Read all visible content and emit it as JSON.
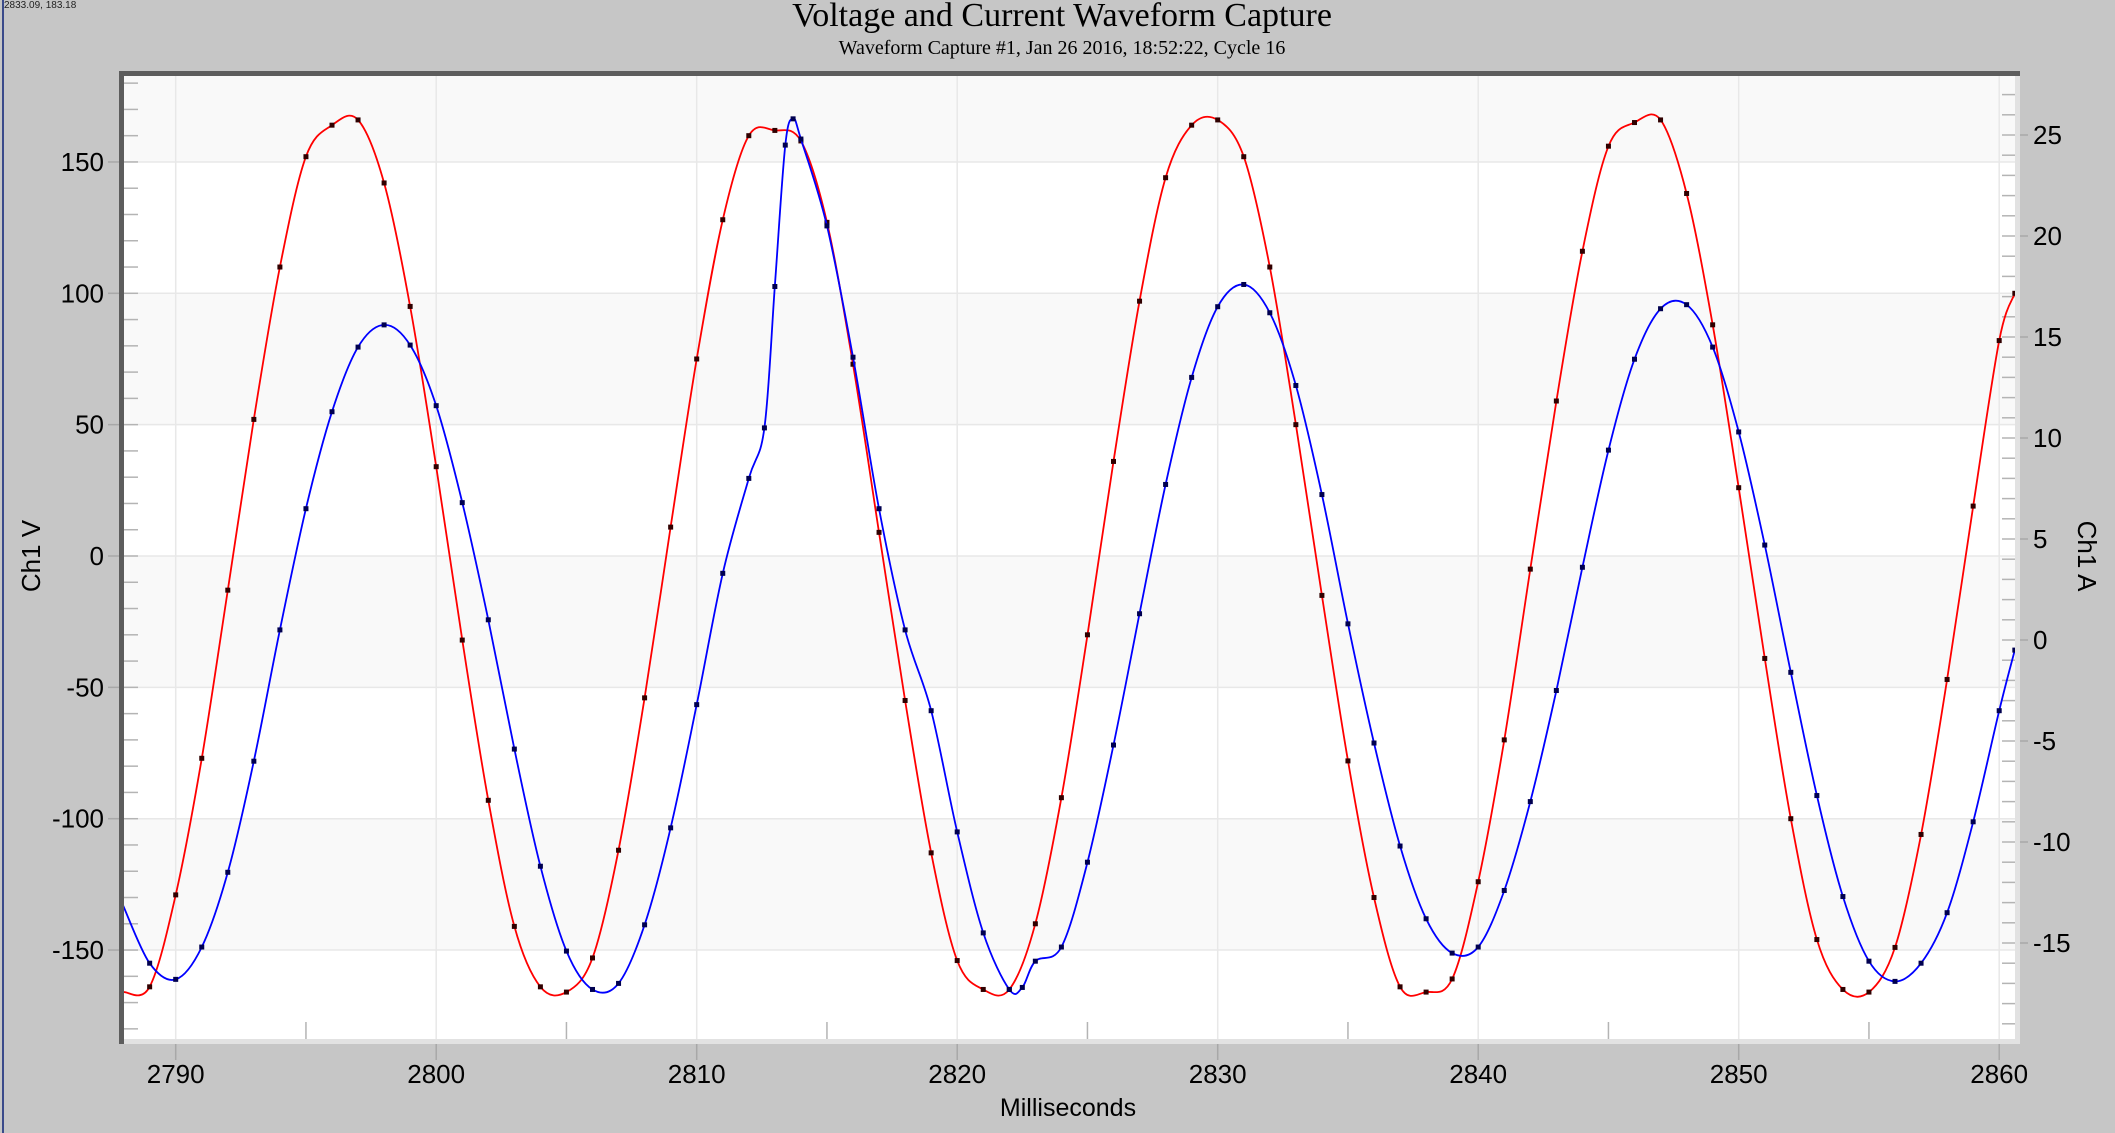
{
  "cursor_readout": "2833.09, 183.18",
  "chart_data": {
    "type": "line",
    "title": "Voltage and Current Waveform Capture",
    "subtitle": "Waveform Capture #1, Jan 26 2016, 18:52:22,  Cycle 16",
    "xlabel": "Milliseconds",
    "ylabel": "Ch1 V",
    "y2label": "Ch1 A",
    "xlim": [
      2787.9,
      2860.6
    ],
    "ylim": [
      -183.9,
      183.5
    ],
    "y2lim": [
      -19.7,
      28.0
    ],
    "x_ticks": [
      "2790",
      "2800",
      "2810",
      "2820",
      "2830",
      "2840",
      "2850",
      "2860"
    ],
    "y_ticks": [
      "150",
      "100",
      "50",
      "0",
      "-50",
      "-100",
      "-150"
    ],
    "y2_ticks": [
      "25",
      "20",
      "15",
      "10",
      "5",
      "0",
      "-5",
      "-10",
      "-15"
    ],
    "grid": true,
    "colors": {
      "voltage": "#ff0000",
      "current": "#0000ff",
      "background": "#c6c6c6",
      "band": "#f9f9f9"
    },
    "series": [
      {
        "axis": "left",
        "color": "#ff0000",
        "x": [
          2787.9,
          2788,
          2789,
          2790,
          2791,
          2792,
          2793,
          2794,
          2795,
          2796,
          2797,
          2798,
          2799,
          2800,
          2801,
          2802,
          2803,
          2804,
          2805,
          2806,
          2807,
          2808,
          2809,
          2810,
          2811,
          2812,
          2813,
          2814,
          2815,
          2816,
          2817,
          2818,
          2819,
          2820,
          2821,
          2822,
          2823,
          2824,
          2825,
          2826,
          2827,
          2828,
          2829,
          2830,
          2831,
          2832,
          2833,
          2834,
          2835,
          2836,
          2837,
          2838,
          2839,
          2840,
          2841,
          2842,
          2843,
          2844,
          2845,
          2846,
          2847,
          2848,
          2849,
          2850,
          2851,
          2852,
          2853,
          2854,
          2855,
          2856,
          2857,
          2858,
          2859,
          2860,
          2860.6
        ],
        "values": [
          -166,
          -166,
          -164,
          -129,
          -77,
          -13,
          52,
          110,
          152,
          164,
          166,
          142,
          95,
          34,
          -32,
          -93,
          -141,
          -164,
          -166,
          -153,
          -112,
          -54,
          11,
          75,
          128,
          160,
          162,
          158,
          127,
          73,
          9,
          -55,
          -113,
          -154,
          -165,
          -165,
          -140,
          -92,
          -30,
          36,
          97,
          144,
          164,
          166,
          152,
          110,
          50,
          -15,
          -78,
          -130,
          -164,
          -166,
          -161,
          -124,
          -70,
          -5,
          59,
          116,
          156,
          165,
          166,
          138,
          88,
          26,
          -39,
          -100,
          -146,
          -165,
          -166,
          -149,
          -106,
          -47,
          19,
          82,
          100
        ]
      },
      {
        "axis": "right",
        "color": "#0000ff",
        "x": [
          2787.9,
          2788,
          2789,
          2790,
          2791,
          2792,
          2793,
          2794,
          2795,
          2796,
          2797,
          2798,
          2799,
          2800,
          2801,
          2802,
          2803,
          2804,
          2805,
          2806,
          2807,
          2808,
          2809,
          2810,
          2811,
          2812,
          2812.6,
          2813,
          2813.4,
          2813.7,
          2814,
          2815,
          2816,
          2817,
          2818,
          2819,
          2820,
          2821,
          2822,
          2822.5,
          2823,
          2824,
          2825,
          2826,
          2827,
          2828,
          2829,
          2830,
          2831,
          2832,
          2833,
          2834,
          2835,
          2836,
          2837,
          2838,
          2839,
          2840,
          2841,
          2842,
          2843,
          2844,
          2845,
          2846,
          2847,
          2848,
          2849,
          2850,
          2851,
          2852,
          2853,
          2854,
          2855,
          2856,
          2857,
          2858,
          2859,
          2860,
          2860.6
        ],
        "values": [
          -12.8,
          -13.2,
          -16.0,
          -16.8,
          -15.2,
          -11.5,
          -6.0,
          0.5,
          6.5,
          11.3,
          14.5,
          15.6,
          14.6,
          11.6,
          6.8,
          1.0,
          -5.4,
          -11.2,
          -15.4,
          -17.3,
          -17.0,
          -14.1,
          -9.3,
          -3.2,
          3.3,
          8.0,
          10.5,
          17.5,
          24.5,
          25.8,
          24.8,
          20.5,
          14.0,
          6.5,
          0.5,
          -3.5,
          -9.5,
          -14.5,
          -17.3,
          -17.2,
          -15.9,
          -15.2,
          -11.0,
          -5.2,
          1.3,
          7.7,
          13.0,
          16.5,
          17.6,
          16.2,
          12.6,
          7.2,
          0.8,
          -5.1,
          -10.2,
          -13.8,
          -15.5,
          -15.2,
          -12.4,
          -8.0,
          -2.5,
          3.6,
          9.4,
          13.9,
          16.4,
          16.6,
          14.5,
          10.3,
          4.7,
          -1.6,
          -7.7,
          -12.7,
          -15.9,
          -16.9,
          -16.0,
          -13.5,
          -9.0,
          -3.5,
          -0.5
        ]
      }
    ]
  }
}
